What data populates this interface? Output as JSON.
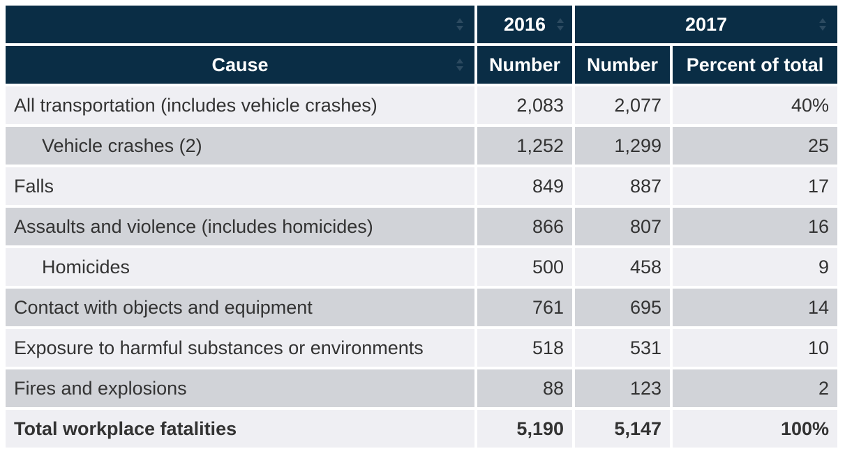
{
  "header": {
    "years": [
      {
        "label": "2016",
        "span": 1
      },
      {
        "label": "2017",
        "span": 2
      }
    ],
    "columns": [
      "Cause",
      "Number",
      "Number",
      "Percent of total"
    ]
  },
  "rows": [
    {
      "cause": "All transportation (includes vehicle crashes)",
      "n2016": "2,083",
      "n2017": "2,077",
      "pct": "40%",
      "indent": false
    },
    {
      "cause": "Vehicle crashes (2)",
      "n2016": "1,252",
      "n2017": "1,299",
      "pct": "25",
      "indent": true
    },
    {
      "cause": "Falls",
      "n2016": "849",
      "n2017": "887",
      "pct": "17",
      "indent": false
    },
    {
      "cause": "Assaults and violence (includes homicides)",
      "n2016": "866",
      "n2017": "807",
      "pct": "16",
      "indent": false
    },
    {
      "cause": "Homicides",
      "n2016": "500",
      "n2017": "458",
      "pct": "9",
      "indent": true
    },
    {
      "cause": "Contact with objects and equipment",
      "n2016": "761",
      "n2017": "695",
      "pct": "14",
      "indent": false
    },
    {
      "cause": "Exposure to harmful substances or environments",
      "n2016": "518",
      "n2017": "531",
      "pct": "10",
      "indent": false
    },
    {
      "cause": "Fires and explosions",
      "n2016": "88",
      "n2017": "123",
      "pct": "2",
      "indent": false
    }
  ],
  "total": {
    "cause": "Total workplace fatalities",
    "n2016": "5,190",
    "n2017": "5,147",
    "pct": "100%"
  },
  "colors": {
    "header_bg": "#0a2d45",
    "row_light": "#efeff3",
    "row_dark": "#d1d3d8",
    "text": "#333333"
  }
}
